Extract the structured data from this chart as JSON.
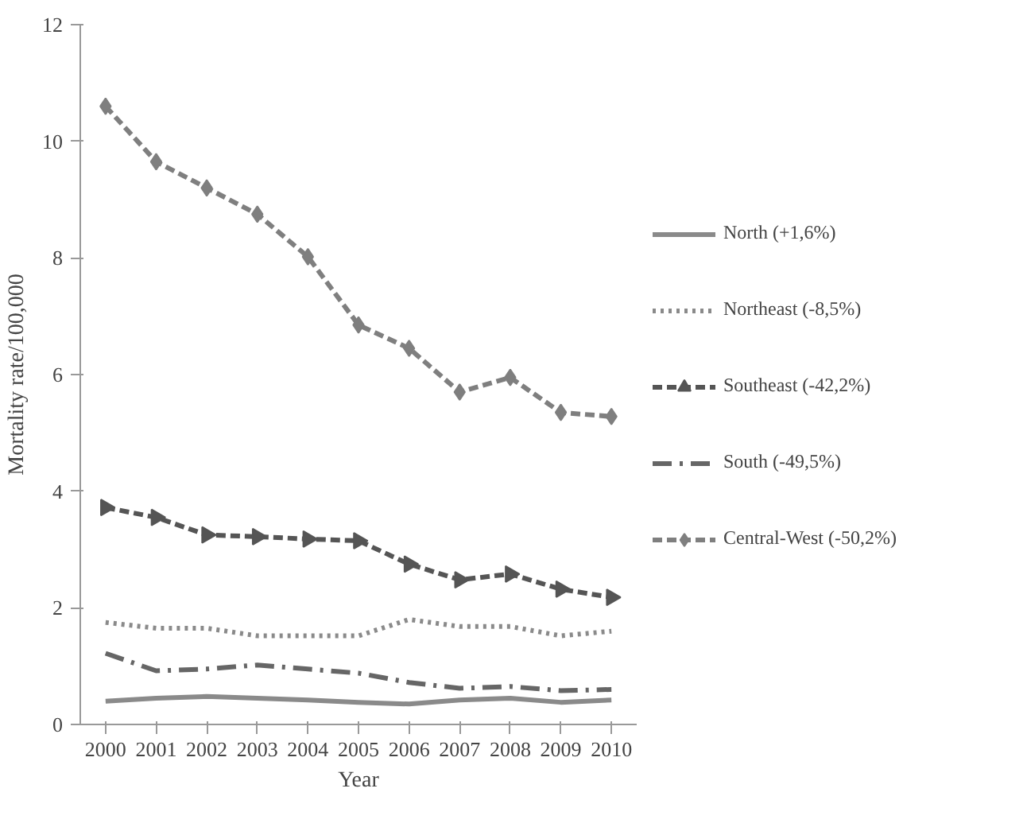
{
  "chart_data": {
    "type": "line",
    "xlabel": "Year",
    "ylabel": "Mortality rate/100,000",
    "categories": [
      "2000",
      "2001",
      "2002",
      "2003",
      "2004",
      "2005",
      "2006",
      "2007",
      "2008",
      "2009",
      "2010"
    ],
    "ylim": [
      0,
      12
    ],
    "yticks": [
      0,
      2,
      4,
      6,
      8,
      10,
      12
    ],
    "grid": false,
    "legend": "right",
    "series": [
      {
        "name": "North (+1,6%)",
        "color": "#8a8a8a",
        "line_style": "solid",
        "marker": "none",
        "values": [
          0.4,
          0.45,
          0.48,
          0.45,
          0.42,
          0.38,
          0.35,
          0.42,
          0.45,
          0.38,
          0.42
        ]
      },
      {
        "name": "Northeast (-8,5%)",
        "color": "#8a8a8a",
        "line_style": "dotted",
        "marker": "none",
        "values": [
          1.75,
          1.65,
          1.65,
          1.52,
          1.52,
          1.52,
          1.8,
          1.68,
          1.68,
          1.52,
          1.6
        ]
      },
      {
        "name": "Southeast (-42,2%)",
        "color": "#555555",
        "line_style": "dashed",
        "marker": "triangle",
        "values": [
          3.72,
          3.55,
          3.25,
          3.22,
          3.18,
          3.15,
          2.75,
          2.48,
          2.58,
          2.32,
          2.18
        ]
      },
      {
        "name": "South (-49,5%)",
        "color": "#666666",
        "line_style": "dashdot",
        "marker": "none",
        "values": [
          1.22,
          0.92,
          0.95,
          1.02,
          0.95,
          0.88,
          0.72,
          0.62,
          0.65,
          0.58,
          0.6
        ]
      },
      {
        "name": "Central-West (-50,2%)",
        "color": "#7f7f7f",
        "line_style": "dashed",
        "marker": "diamond",
        "values": [
          10.6,
          9.65,
          9.2,
          8.75,
          8.02,
          6.85,
          6.45,
          5.7,
          5.95,
          5.35,
          5.28
        ]
      }
    ]
  }
}
